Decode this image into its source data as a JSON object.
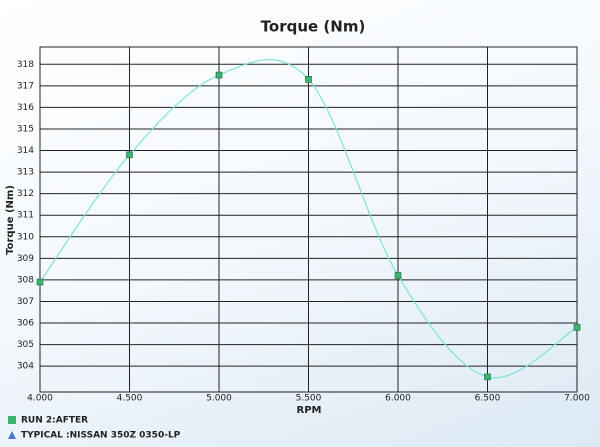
{
  "chart_data": {
    "type": "line",
    "title": "Torque (Nm)",
    "x_label": "RPM",
    "y_label": "Torque (Nm)",
    "x": [
      4000,
      4500,
      5000,
      5500,
      6000,
      6500,
      7000
    ],
    "series": [
      {
        "name": "RUN 2:AFTER",
        "color": "#3cb371",
        "line_color": "#7fe3d2",
        "marker": "square",
        "values": [
          307.9,
          313.8,
          317.5,
          317.3,
          308.2,
          303.5,
          305.8
        ]
      },
      {
        "name": "TYPICAL :NISSAN 350Z 0350-LP",
        "color": "#4a78c8",
        "marker": "triangle",
        "values": [
          null,
          null,
          null,
          null,
          null,
          null,
          null
        ]
      }
    ],
    "xlim": [
      4000,
      7000
    ],
    "xticks": [
      {
        "value": 4000,
        "label": "4.000"
      },
      {
        "value": 4500,
        "label": "4.500"
      },
      {
        "value": 5000,
        "label": "5.000"
      },
      {
        "value": 5500,
        "label": "5.500"
      },
      {
        "value": 6000,
        "label": "6.000"
      },
      {
        "value": 6500,
        "label": "6.500"
      },
      {
        "value": 7000,
        "label": "7.000"
      }
    ],
    "ylim": [
      302.8,
      318.8
    ],
    "yticks": [
      304,
      305,
      306,
      307,
      308,
      309,
      310,
      311,
      312,
      313,
      314,
      315,
      316,
      317,
      318
    ],
    "grid": true,
    "smooth": true,
    "legend": "bottom-left"
  }
}
